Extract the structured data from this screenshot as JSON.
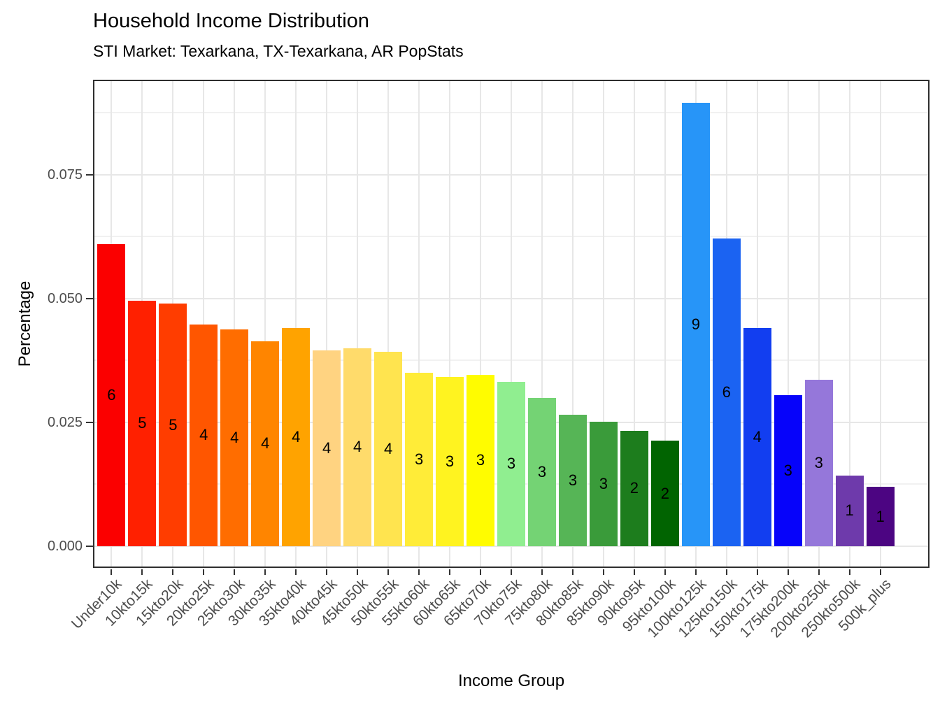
{
  "chart_data": {
    "type": "bar",
    "title": "Household Income Distribution",
    "subtitle": "STI Market: Texarkana, TX-Texarkana, AR PopStats",
    "xlabel": "Income Group",
    "ylabel": "Percentage",
    "legend": "none",
    "grid": true,
    "ylim": [
      -0.00438,
      0.0942
    ],
    "yticks": {
      "values": [
        0.0,
        0.025,
        0.05,
        0.075
      ],
      "labels": [
        "0.000",
        "0.025",
        "0.050",
        "0.075"
      ],
      "minor_step": 0.0125
    },
    "categories": [
      "Under10k",
      "10kto15k",
      "15kto20k",
      "20kto25k",
      "25kto30k",
      "30kto35k",
      "35kto40k",
      "40kto45k",
      "45kto50k",
      "50kto55k",
      "55kto60k",
      "60kto65k",
      "65kto70k",
      "70kto75k",
      "75kto80k",
      "80kto85k",
      "85kto90k",
      "90kto95k",
      "95kto100k",
      "100kto125k",
      "125kto150k",
      "150kto175k",
      "175kto200k",
      "200kto250k",
      "250kto500k",
      "500k_plus"
    ],
    "values": [
      0.061,
      0.0496,
      0.049,
      0.0448,
      0.0438,
      0.0414,
      0.0441,
      0.0396,
      0.04,
      0.0393,
      0.035,
      0.0342,
      0.0346,
      0.0332,
      0.03,
      0.0265,
      0.0251,
      0.0233,
      0.0213,
      0.0896,
      0.0622,
      0.044,
      0.0305,
      0.0336,
      0.0143,
      0.012
    ],
    "bar_labels": [
      "6",
      "5",
      "5",
      "4",
      "4",
      "4",
      "4",
      "4",
      "4",
      "4",
      "3",
      "3",
      "3",
      "3",
      "3",
      "3",
      "3",
      "2",
      "2",
      "9",
      "6",
      "4",
      "3",
      "3",
      "1",
      "1"
    ],
    "bar_colors": [
      "#FB0000",
      "#FF2000",
      "#FF3D00",
      "#FF5600",
      "#FF6D00",
      "#FF8500",
      "#FFA300",
      "#FFD381",
      "#FFDB6B",
      "#FFE44F",
      "#FFEC38",
      "#FFF320",
      "#FFFC00",
      "#90EE90",
      "#74D374",
      "#56B556",
      "#3A9B3A",
      "#1D7D1D",
      "#016401",
      "#2795F8",
      "#1B63F2",
      "#123EF0",
      "#0603FA",
      "#9577DA",
      "#6E3AAB",
      "#4C0582"
    ],
    "colors": {
      "panel_border": "#2e2e2e",
      "grid_major": "#e7e7e7",
      "grid_minor": "#f1f1f1",
      "axis_text": "#4d4d4d",
      "tick_mark": "#333333",
      "title_text": "#000000",
      "bar_label_text": "#000000"
    }
  }
}
